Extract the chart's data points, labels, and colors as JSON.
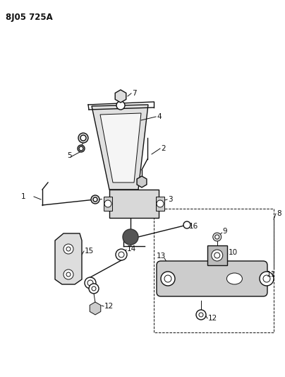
{
  "title": "8J05 725A",
  "bg": "#ffffff",
  "lc": "#111111",
  "gray": "#aaaaaa",
  "dgray": "#555555",
  "lgray": "#cccccc",
  "figsize": [
    4.04,
    5.33
  ],
  "dpi": 100
}
